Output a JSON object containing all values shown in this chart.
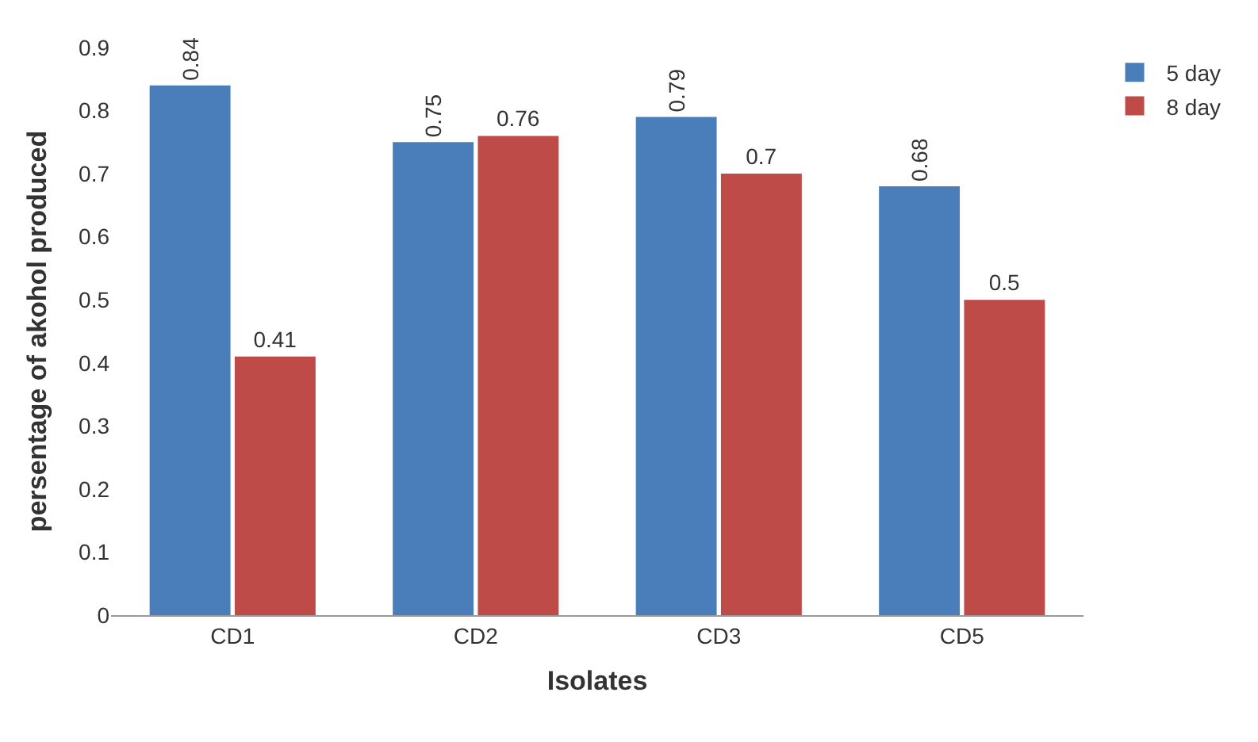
{
  "chart_data": {
    "type": "bar",
    "xlabel": "Isolates",
    "ylabel": "persentage of akohol produced",
    "categories": [
      "CD1",
      "CD2",
      "CD3",
      "CD5"
    ],
    "series": [
      {
        "name": "5 day",
        "color": "#4a7ebb",
        "values": [
          0.84,
          0.75,
          0.79,
          0.68
        ]
      },
      {
        "name": "8 day",
        "color": "#be4b48",
        "values": [
          0.41,
          0.76,
          0.7,
          0.5
        ]
      }
    ],
    "ylim": [
      0,
      0.9
    ],
    "yticks": [
      0,
      0.1,
      0.2,
      0.3,
      0.4,
      0.5,
      0.6,
      0.7,
      0.8,
      0.9
    ],
    "data_labels": true,
    "legend": "top right"
  }
}
